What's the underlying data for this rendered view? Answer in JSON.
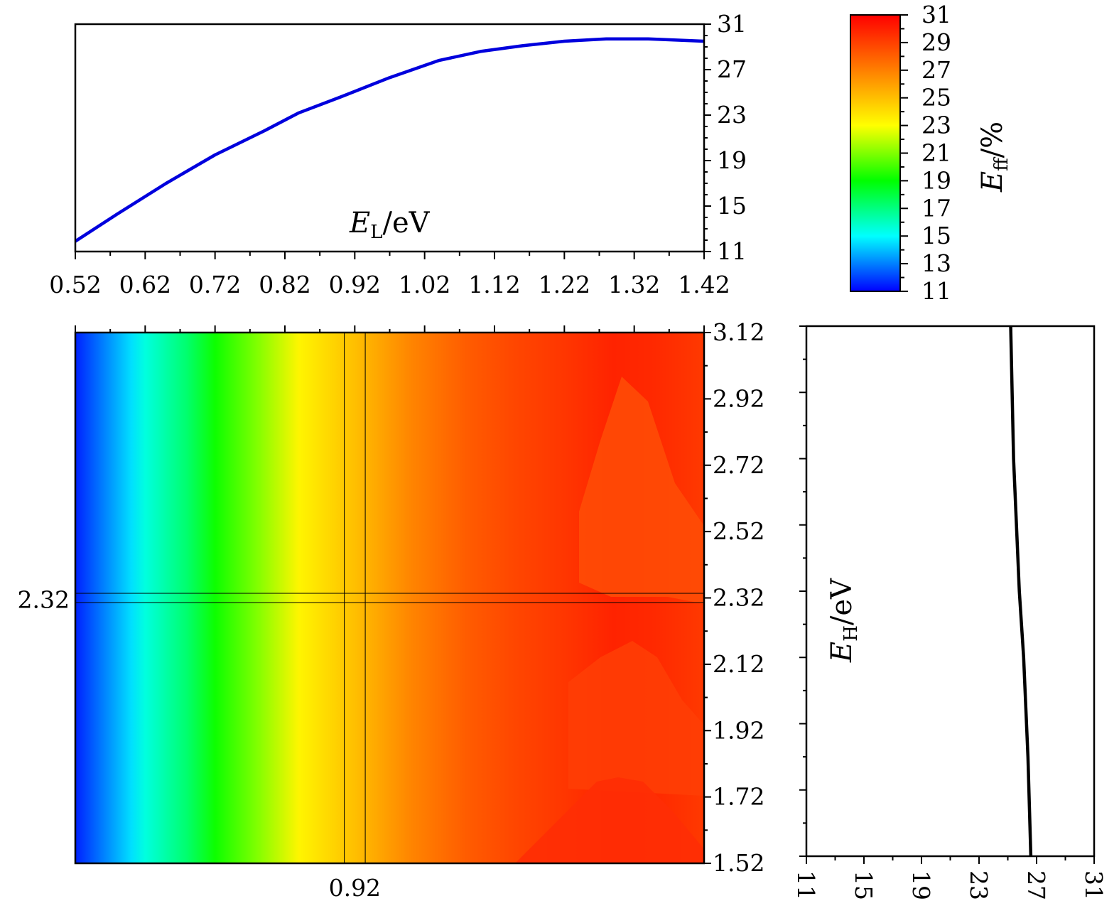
{
  "chart_data": [
    {
      "type": "heatmap",
      "xlim": [
        0.52,
        1.42
      ],
      "ylim": [
        1.52,
        3.12
      ],
      "x_tick_labels": [
        "0.92"
      ],
      "x_tick_values": [
        0.92
      ],
      "y_tick_labels": [
        "1.52",
        "1.72",
        "1.92",
        "2.12",
        "2.32",
        "2.52",
        "2.72",
        "2.92",
        "3.12"
      ],
      "y_tick_values": [
        1.52,
        1.72,
        1.92,
        2.12,
        2.32,
        2.52,
        2.72,
        2.92,
        3.12
      ],
      "left_marker_label": "2.32",
      "left_marker_value": 2.32,
      "crosshair": {
        "x": [
          0.905,
          0.935
        ],
        "y": [
          2.306,
          2.334
        ]
      },
      "colorscale": [
        "#0000ff",
        "#00ffff",
        "#00ff00",
        "#ffff00",
        "#ff7f00",
        "#ff0000"
      ],
      "contour_levels": [
        11,
        31
      ],
      "z_profile": [
        {
          "x": 0.52,
          "z": 11.5
        },
        {
          "x": 0.6,
          "z": 14.5
        },
        {
          "x": 0.62,
          "z": 15.5
        },
        {
          "x": 0.68,
          "z": 17.3
        },
        {
          "x": 0.72,
          "z": 19.2
        },
        {
          "x": 0.78,
          "z": 21.0
        },
        {
          "x": 0.84,
          "z": 23.3
        },
        {
          "x": 0.92,
          "z": 25.0
        },
        {
          "x": 1.0,
          "z": 26.8
        },
        {
          "x": 1.08,
          "z": 28.1
        },
        {
          "x": 1.15,
          "z": 28.8
        },
        {
          "x": 1.22,
          "z": 29.3
        },
        {
          "x": 1.29,
          "z": 29.9
        },
        {
          "x": 1.35,
          "z": 29.7
        },
        {
          "x": 1.42,
          "z": 29.2
        }
      ]
    },
    {
      "type": "line",
      "xlabel_sym": "E",
      "xlabel_sub": "L",
      "xlabel_unit": "/eV",
      "xlim": [
        0.52,
        1.42
      ],
      "ylim": [
        11,
        31
      ],
      "x_tick_labels": [
        "0.52",
        "0.62",
        "0.72",
        "0.82",
        "0.92",
        "1.02",
        "1.12",
        "1.22",
        "1.32",
        "1.42"
      ],
      "x_tick_values": [
        0.52,
        0.62,
        0.72,
        0.82,
        0.92,
        1.02,
        1.12,
        1.22,
        1.32,
        1.42
      ],
      "y_tick_labels": [
        "11",
        "15",
        "19",
        "23",
        "27",
        "31"
      ],
      "y_tick_values": [
        11,
        15,
        19,
        23,
        27,
        31
      ],
      "color": "#0000dd",
      "x": [
        0.52,
        0.58,
        0.65,
        0.72,
        0.79,
        0.84,
        0.9,
        0.97,
        1.04,
        1.1,
        1.16,
        1.22,
        1.28,
        1.34,
        1.42
      ],
      "y": [
        11.9,
        14.3,
        17.0,
        19.5,
        21.6,
        23.2,
        24.6,
        26.3,
        27.8,
        28.6,
        29.1,
        29.5,
        29.7,
        29.7,
        29.5
      ]
    },
    {
      "type": "line",
      "ylabel_sym": "E",
      "ylabel_sub": "H",
      "ylabel_unit": "/eV",
      "xlim": [
        11,
        31
      ],
      "ylim": [
        1.52,
        3.12
      ],
      "x_tick_labels": [
        "11",
        "15",
        "19",
        "23",
        "27",
        "31"
      ],
      "x_tick_values": [
        11,
        15,
        19,
        23,
        27,
        31
      ],
      "color": "#000000",
      "x": [
        25.2,
        25.3,
        25.4,
        25.6,
        25.8,
        26.1,
        26.4,
        26.6
      ],
      "y": [
        3.12,
        2.92,
        2.72,
        2.52,
        2.32,
        2.12,
        1.82,
        1.52
      ]
    },
    {
      "type": "colorbar",
      "label_sym": "E",
      "label_sub": "ff",
      "label_unit": "/%",
      "range": [
        11,
        31
      ],
      "tick_labels": [
        "11",
        "13",
        "15",
        "17",
        "19",
        "21",
        "23",
        "25",
        "27",
        "29",
        "31"
      ],
      "tick_values": [
        11,
        13,
        15,
        17,
        19,
        21,
        23,
        25,
        27,
        29,
        31
      ]
    }
  ]
}
